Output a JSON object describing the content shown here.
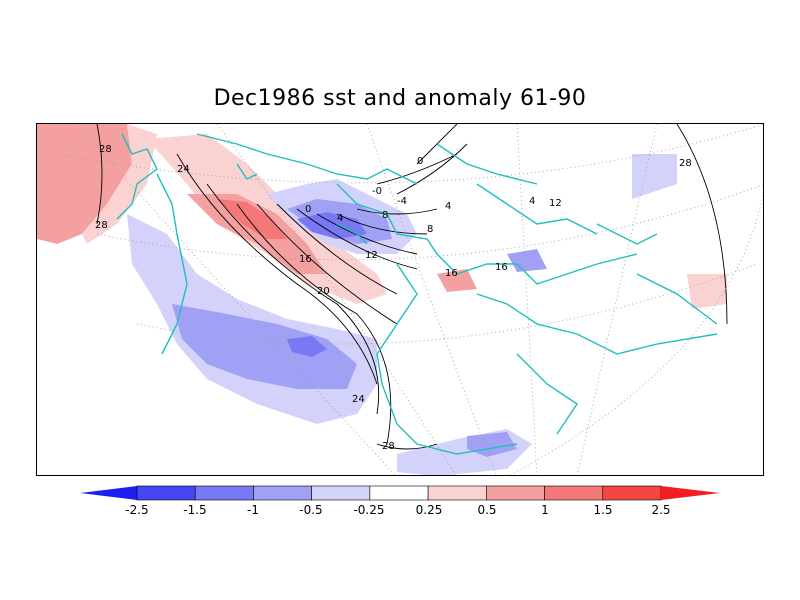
{
  "title": "Dec1986 sst and anomaly 61-90",
  "colors": {
    "coast": "#1fbfbf",
    "grid": "#9a9a9a",
    "frame": "#000000",
    "contour": "#000000"
  },
  "contour_labels": [
    "28",
    "24",
    "28",
    "0",
    "4",
    "8",
    "12",
    "16",
    "20",
    "24",
    "28",
    "-0",
    "-4",
    "4",
    "8",
    "0",
    "16",
    "16",
    "4",
    "12",
    "28"
  ],
  "colorbar": {
    "labels": [
      "-2.5",
      "-1.5",
      "-1",
      "-0.5",
      "-0.25",
      "0.25",
      "0.5",
      "1",
      "1.5",
      "2.5"
    ],
    "colors": [
      "#1e1ef0",
      "#4646f5",
      "#7878f5",
      "#a0a0f5",
      "#d2d2fa",
      "#ffffff",
      "#fad2d2",
      "#f5a0a0",
      "#f57878",
      "#f54646",
      "#f51e1e"
    ]
  }
}
